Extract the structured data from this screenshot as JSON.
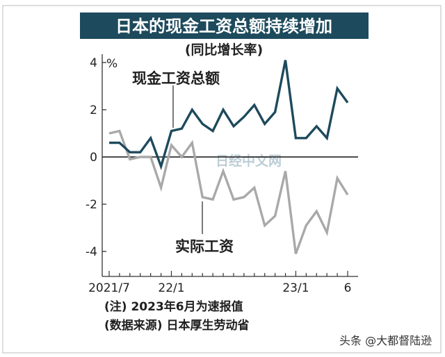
{
  "title": "日本的现金工资总额持续增加",
  "subtitle": "(同比增长率)",
  "unit": "%",
  "watermark": "日经中文网",
  "notes": [
    "(注)  2023年6月为速报值",
    "(数据来源)  日本厚生劳动省"
  ],
  "credit": "头条 @大都督陆逊",
  "colors": {
    "title_bg": "#1d4a5c",
    "cash": "#1d4a5c",
    "real": "#a9a9a9"
  },
  "chart_data": {
    "type": "line",
    "title": "日本的现金工资总额持续增加",
    "subtitle": "(同比增长率)",
    "ylabel": "%",
    "ylim": [
      -5,
      4.5
    ],
    "y_ticks": [
      4,
      2,
      0,
      -2,
      -4
    ],
    "x_tick_labels": [
      "2021/7",
      "22/1",
      "23/1",
      "6"
    ],
    "x": [
      "2021/7",
      "2021/8",
      "2021/9",
      "2021/10",
      "2021/11",
      "2021/12",
      "2022/1",
      "2022/2",
      "2022/3",
      "2022/4",
      "2022/5",
      "2022/6",
      "2022/7",
      "2022/8",
      "2022/9",
      "2022/10",
      "2022/11",
      "2022/12",
      "2023/1",
      "2023/2",
      "2023/3",
      "2023/4",
      "2023/5",
      "2023/6"
    ],
    "series": [
      {
        "name": "现金工资总额",
        "color": "#1d4a5c",
        "values": [
          0.6,
          0.6,
          0.2,
          0.2,
          0.8,
          -0.4,
          1.1,
          1.2,
          2.0,
          1.4,
          1.1,
          2.0,
          1.3,
          1.7,
          2.2,
          1.4,
          1.9,
          4.1,
          0.8,
          0.8,
          1.3,
          0.8,
          2.9,
          2.3
        ]
      },
      {
        "name": "实际工资",
        "color": "#a9a9a9",
        "values": [
          1.0,
          1.1,
          -0.1,
          0.0,
          0.0,
          -1.3,
          0.5,
          0.0,
          0.6,
          -1.7,
          -1.8,
          -0.6,
          -1.8,
          -1.7,
          -1.3,
          -2.9,
          -2.5,
          -0.6,
          -4.1,
          -2.9,
          -2.3,
          -3.2,
          -0.9,
          -1.6
        ]
      }
    ],
    "grid": false,
    "legend": "inline labels"
  }
}
